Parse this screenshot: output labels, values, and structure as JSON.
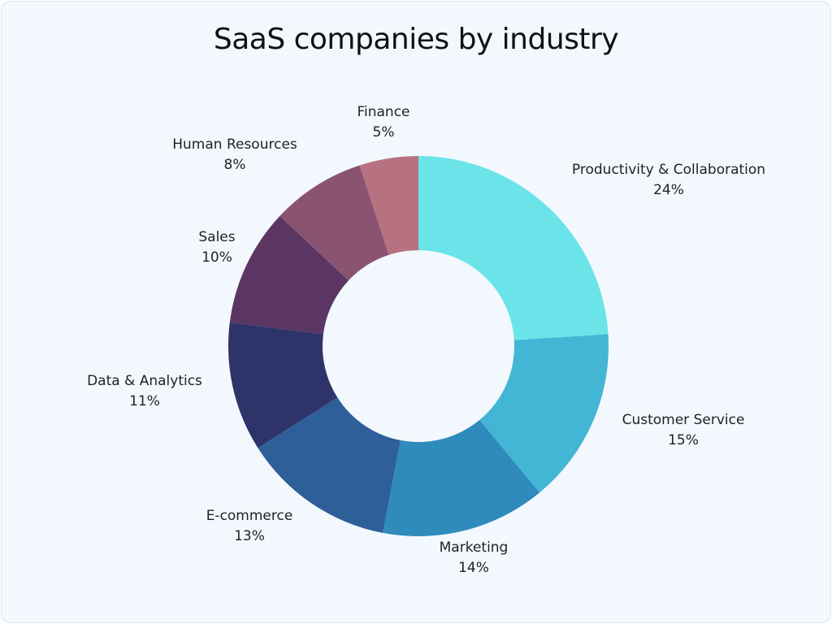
{
  "chart_data": {
    "type": "pie",
    "subtype": "donut",
    "title": "SaaS companies by industry",
    "categories": [
      "Productivity & Collaboration",
      "Customer Service",
      "Marketing",
      "E-commerce",
      "Data & Analytics",
      "Sales",
      "Human Resources",
      "Finance"
    ],
    "values": [
      24,
      15,
      14,
      13,
      11,
      10,
      8,
      5
    ],
    "labels": [
      "24%",
      "15%",
      "14%",
      "13%",
      "11%",
      "10%",
      "8%",
      "5%"
    ],
    "colors": [
      "#6be4e9",
      "#43b6d5",
      "#2e8bbb",
      "#2e5f99",
      "#2e3469",
      "#5c3663",
      "#8a5371",
      "#b77282"
    ],
    "legend": "none"
  }
}
